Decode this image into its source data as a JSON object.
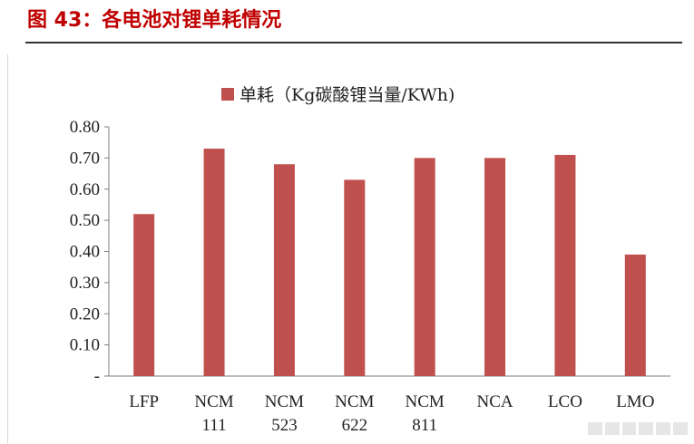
{
  "figure": {
    "title": "图 43：各电池对锂单耗情况"
  },
  "chart_data": {
    "type": "bar",
    "categories": [
      [
        "LFP"
      ],
      [
        "NCM",
        "111"
      ],
      [
        "NCM",
        "523"
      ],
      [
        "NCM",
        "622"
      ],
      [
        "NCM",
        "811"
      ],
      [
        "NCA"
      ],
      [
        "LCO"
      ],
      [
        "LMO"
      ]
    ],
    "series": [
      {
        "name": "单耗（Kg碳酸锂当量/KWh)",
        "values": [
          0.52,
          0.73,
          0.68,
          0.63,
          0.7,
          0.7,
          0.71,
          0.39
        ],
        "color": "#c0504d"
      }
    ],
    "ylim": [
      0,
      0.8
    ],
    "yticks": [
      "-",
      "0.10",
      "0.20",
      "0.30",
      "0.40",
      "0.50",
      "0.60",
      "0.70",
      "0.80"
    ],
    "legend_position": "top-center",
    "grid": false
  }
}
